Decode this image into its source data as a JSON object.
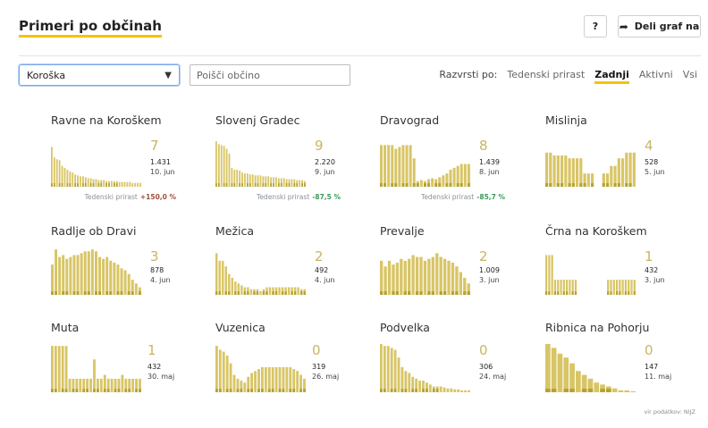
{
  "header": {
    "title": "Primeri po občinah",
    "help_label": "?",
    "share_label": "Deli graf na"
  },
  "filters": {
    "region_selected": "Koroška",
    "search_placeholder": "Poišči občino",
    "sort_label": "Razvrsti po:",
    "sort_options": [
      "Tedenski prirast",
      "Zadnji",
      "Aktivni",
      "Vsi"
    ],
    "sort_active": "Zadnji"
  },
  "colors": {
    "bar": "#d8c565",
    "bar_dark": "#a08a10",
    "accent": "#f2c500",
    "trend_up": "#a0503a",
    "trend_down": "#3c9a5a"
  },
  "trend_label": "Tedenski prirast",
  "municipalities": [
    {
      "name": "Ravne na Koroškem",
      "count": "7",
      "cases": "1.431",
      "date": "10. jun",
      "trend": "+150,0 %",
      "trend_dir": "up",
      "bars": [
        42,
        31,
        29,
        28,
        22,
        20,
        18,
        16,
        15,
        13,
        12,
        11,
        11,
        10,
        9,
        9,
        8,
        8,
        7,
        7,
        7,
        6,
        6,
        6,
        6,
        6,
        5,
        5,
        5,
        5,
        5,
        4,
        4,
        4,
        4
      ]
    },
    {
      "name": "Slovenj Gradec",
      "count": "9",
      "cases": "2.220",
      "date": "9. jun",
      "trend": "-87,5 %",
      "trend_dir": "down",
      "bars": [
        48,
        45,
        44,
        43,
        40,
        35,
        20,
        18,
        18,
        17,
        15,
        14,
        14,
        13,
        13,
        12,
        12,
        12,
        11,
        11,
        11,
        10,
        10,
        10,
        9,
        9,
        9,
        8,
        8,
        8,
        8,
        7,
        7,
        7,
        6
      ]
    },
    {
      "name": "Dravograd",
      "count": "8",
      "cases": "1.439",
      "date": "8. jun",
      "trend": "-85,7 %",
      "trend_dir": "down",
      "bars": [
        44,
        44,
        44,
        44,
        40,
        42,
        44,
        44,
        44,
        30,
        6,
        7,
        6,
        8,
        9,
        8,
        10,
        12,
        14,
        18,
        20,
        22,
        24,
        24,
        24
      ]
    },
    {
      "name": "Mislinja",
      "count": "4",
      "cases": "528",
      "date": "5. jun",
      "trend": "",
      "trend_dir": "",
      "bars": [
        36,
        36,
        33,
        33,
        33,
        33,
        30,
        30,
        30,
        30,
        14,
        14,
        14,
        0,
        0,
        14,
        14,
        22,
        22,
        30,
        30,
        36,
        36,
        36
      ]
    },
    {
      "name": "Radlje ob Dravi",
      "count": "3",
      "cases": "878",
      "date": "4. jun",
      "trend": "",
      "trend_dir": "",
      "bars": [
        32,
        48,
        40,
        42,
        38,
        40,
        42,
        42,
        44,
        46,
        46,
        48,
        46,
        40,
        38,
        40,
        36,
        34,
        32,
        28,
        26,
        22,
        16,
        12,
        8
      ]
    },
    {
      "name": "Mežica",
      "count": "2",
      "cases": "492",
      "date": "4. jun",
      "trend": "",
      "trend_dir": "",
      "bars": [
        44,
        36,
        36,
        30,
        22,
        18,
        14,
        12,
        10,
        8,
        8,
        6,
        6,
        6,
        4,
        6,
        8,
        8,
        8,
        8,
        8,
        8,
        8,
        8,
        8,
        8,
        8,
        6,
        6
      ]
    },
    {
      "name": "Prevalje",
      "count": "2",
      "cases": "1.009",
      "date": "3. jun",
      "trend": "",
      "trend_dir": "",
      "bars": [
        36,
        30,
        36,
        32,
        34,
        38,
        36,
        38,
        42,
        40,
        40,
        36,
        38,
        40,
        44,
        40,
        38,
        36,
        34,
        30,
        24,
        18,
        12
      ]
    },
    {
      "name": "Črna na Koroškem",
      "count": "1",
      "cases": "432",
      "date": "3. jun",
      "trend": "",
      "trend_dir": "",
      "bars": [
        42,
        42,
        42,
        16,
        16,
        16,
        16,
        16,
        16,
        16,
        16,
        0,
        0,
        0,
        0,
        0,
        0,
        0,
        0,
        0,
        0,
        16,
        16,
        16,
        16,
        16,
        16,
        16,
        16,
        16,
        16
      ]
    },
    {
      "name": "Muta",
      "count": "1",
      "cases": "432",
      "date": "30. maj",
      "trend": "",
      "trend_dir": "",
      "bars": [
        48,
        48,
        48,
        48,
        48,
        14,
        14,
        14,
        14,
        14,
        14,
        14,
        34,
        14,
        14,
        18,
        14,
        14,
        14,
        14,
        18,
        14,
        14,
        14,
        14,
        14
      ]
    },
    {
      "name": "Vuzenica",
      "count": "0",
      "cases": "319",
      "date": "26. maj",
      "trend": "",
      "trend_dir": "",
      "bars": [
        48,
        44,
        42,
        38,
        30,
        18,
        14,
        12,
        10,
        16,
        20,
        22,
        24,
        26,
        26,
        26,
        26,
        26,
        26,
        26,
        26,
        26,
        24,
        22,
        18,
        14
      ]
    },
    {
      "name": "Podvelka",
      "count": "0",
      "cases": "306",
      "date": "24. maj",
      "trend": "",
      "trend_dir": "",
      "bars": [
        50,
        48,
        48,
        46,
        44,
        36,
        26,
        22,
        20,
        16,
        14,
        12,
        12,
        10,
        8,
        6,
        6,
        6,
        5,
        4,
        4,
        3,
        3,
        2,
        2,
        2
      ]
    },
    {
      "name": "Ribnica na Pohorju",
      "count": "0",
      "cases": "147",
      "date": "11. maj",
      "trend": "",
      "trend_dir": "",
      "bars": [
        50,
        46,
        40,
        36,
        30,
        22,
        18,
        14,
        10,
        8,
        6,
        4,
        2,
        2,
        1
      ]
    }
  ],
  "source_text": "vir podatkov: NIJZ"
}
